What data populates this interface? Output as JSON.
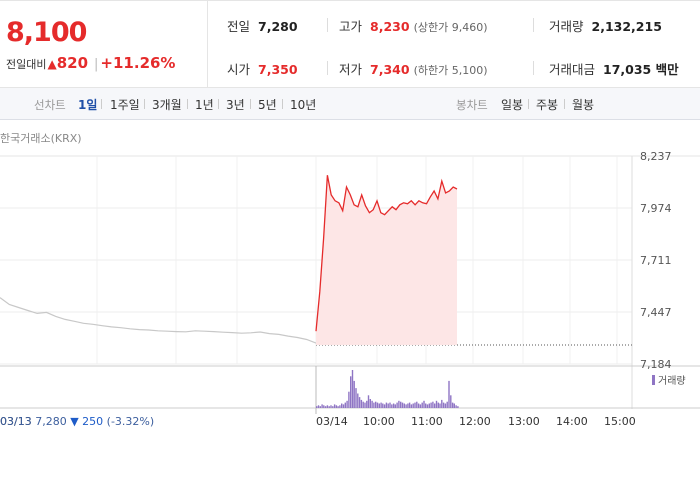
{
  "quote": {
    "price": "8,100",
    "change_label": "전일대비",
    "change_arrow": "▲",
    "change_value": "820",
    "change_sep": "|",
    "change_pct": "+11.26%",
    "prev_close_label": "전일",
    "prev_close": "7,280",
    "high_label": "고가",
    "high": "8,230",
    "upper_limit": "(상한가 9,460)",
    "volume_label": "거래량",
    "volume": "2,132,215",
    "open_label": "시가",
    "open": "7,350",
    "low_label": "저가",
    "low": "7,340",
    "lower_limit": "(하한가 5,100)",
    "amount_label": "거래대금",
    "amount": "17,035 백만"
  },
  "tabs": {
    "line_label": "선차트",
    "line_periods": [
      "1일",
      "1주일",
      "3개월",
      "1년",
      "3년",
      "5년",
      "10년"
    ],
    "active_period": "1일",
    "candle_label": "봉차트",
    "candle_periods": [
      "일봉",
      "주봉",
      "월봉"
    ]
  },
  "market_label": "한국거래소(KRX)",
  "colors": {
    "up": "#e52b2b",
    "down": "#1e5cc8",
    "prev_line": "#c8c8c8",
    "fill": "#fde6e6",
    "volume": "#8f75c4"
  },
  "chart_data": {
    "type": "line",
    "y_ticks": [
      "8,237",
      "7,974",
      "7,711",
      "7,447",
      "7,184"
    ],
    "ylim": [
      7184,
      8237
    ],
    "x_ticks": [
      "03/13",
      "03/14",
      "10:00",
      "11:00",
      "12:00",
      "13:00",
      "14:00",
      "15:00"
    ],
    "prev_close": 7280,
    "prev_day_series": {
      "values": [
        7520,
        7485,
        7470,
        7455,
        7440,
        7445,
        7425,
        7410,
        7400,
        7390,
        7385,
        7378,
        7372,
        7368,
        7362,
        7358,
        7356,
        7352,
        7350,
        7348,
        7347,
        7352,
        7350,
        7348,
        7345,
        7343,
        7340,
        7342,
        7346,
        7338,
        7334,
        7325,
        7318,
        7308,
        7290
      ]
    },
    "today_series": {
      "values": [
        7350,
        7550,
        7820,
        8140,
        8040,
        8010,
        8000,
        7960,
        8080,
        8040,
        7990,
        7980,
        8040,
        7985,
        7950,
        7965,
        8010,
        7950,
        7940,
        7960,
        7980,
        7965,
        7990,
        8000,
        7995,
        8010,
        7990,
        8010,
        8000,
        7995,
        8030,
        8060,
        8020,
        8110,
        8050,
        8060,
        8080,
        8070
      ]
    },
    "volume_label": "거래량",
    "volume": [
      2,
      3,
      2,
      4,
      3,
      2,
      3,
      2,
      3,
      2,
      4,
      3,
      2,
      3,
      5,
      4,
      6,
      8,
      18,
      35,
      42,
      30,
      22,
      16,
      12,
      9,
      7,
      6,
      8,
      14,
      10,
      8,
      6,
      7,
      6,
      5,
      6,
      5,
      4,
      6,
      5,
      6,
      4,
      5,
      4,
      6,
      8,
      7,
      6,
      5,
      4,
      5,
      6,
      4,
      5,
      6,
      7,
      5,
      4,
      6,
      8,
      5,
      4,
      5,
      6,
      7,
      5,
      8,
      6,
      5,
      9,
      6,
      5,
      7,
      30,
      14,
      6,
      5,
      3,
      2
    ]
  },
  "prev_info": {
    "date": "03/13",
    "price": "7,280",
    "arrow": "▼",
    "change": "250",
    "pct": "(-3.32%)"
  }
}
